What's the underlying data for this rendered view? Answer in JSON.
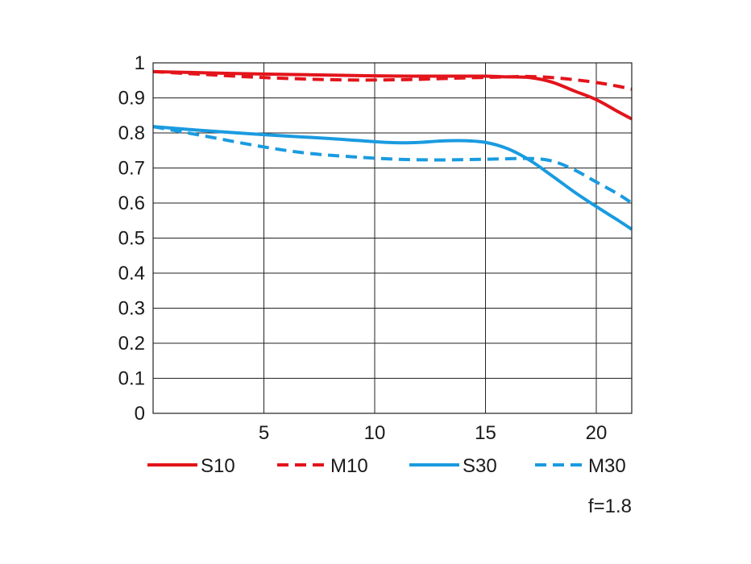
{
  "chart_data": {
    "type": "line",
    "title": "",
    "xlabel": "",
    "ylabel": "",
    "xlim": [
      0,
      21.6
    ],
    "ylim": [
      0,
      1
    ],
    "x_ticks": [
      5,
      10,
      15,
      20
    ],
    "y_ticks": [
      0,
      0.1,
      0.2,
      0.3,
      0.4,
      0.5,
      0.6,
      0.7,
      0.8,
      0.9,
      1
    ],
    "y_tick_labels": [
      "0",
      "0.1",
      "0.2",
      "0.3",
      "0.4",
      "0.5",
      "0.6",
      "0.7",
      "0.8",
      "0.9",
      "1"
    ],
    "grid": true,
    "legend_position": "bottom",
    "annotation": "f=1.8",
    "series": [
      {
        "name": "S10",
        "color": "#e3141b",
        "dash": "solid",
        "points": [
          [
            0,
            0.975
          ],
          [
            2,
            0.972
          ],
          [
            5,
            0.968
          ],
          [
            8,
            0.965
          ],
          [
            10,
            0.963
          ],
          [
            12,
            0.962
          ],
          [
            14,
            0.962
          ],
          [
            15,
            0.962
          ],
          [
            16,
            0.96
          ],
          [
            17,
            0.958
          ],
          [
            18,
            0.945
          ],
          [
            19,
            0.92
          ],
          [
            20,
            0.895
          ],
          [
            21,
            0.86
          ],
          [
            21.6,
            0.84
          ]
        ]
      },
      {
        "name": "M10",
        "color": "#e3141b",
        "dash": "dashed",
        "points": [
          [
            0,
            0.975
          ],
          [
            2,
            0.968
          ],
          [
            5,
            0.958
          ],
          [
            8,
            0.952
          ],
          [
            10,
            0.951
          ],
          [
            12,
            0.953
          ],
          [
            14,
            0.957
          ],
          [
            16,
            0.96
          ],
          [
            17,
            0.961
          ],
          [
            18,
            0.958
          ],
          [
            19,
            0.952
          ],
          [
            20,
            0.944
          ],
          [
            21,
            0.933
          ],
          [
            21.6,
            0.925
          ]
        ]
      },
      {
        "name": "S30",
        "color": "#1a9be0",
        "dash": "solid",
        "points": [
          [
            0,
            0.818
          ],
          [
            2,
            0.808
          ],
          [
            5,
            0.795
          ],
          [
            8,
            0.784
          ],
          [
            10,
            0.775
          ],
          [
            11,
            0.772
          ],
          [
            12,
            0.773
          ],
          [
            13,
            0.777
          ],
          [
            14,
            0.778
          ],
          [
            15,
            0.773
          ],
          [
            16,
            0.755
          ],
          [
            17,
            0.722
          ],
          [
            18,
            0.678
          ],
          [
            19,
            0.632
          ],
          [
            20,
            0.59
          ],
          [
            21,
            0.55
          ],
          [
            21.6,
            0.525
          ]
        ]
      },
      {
        "name": "M30",
        "color": "#1a9be0",
        "dash": "dashed",
        "points": [
          [
            0,
            0.818
          ],
          [
            2,
            0.795
          ],
          [
            5,
            0.76
          ],
          [
            7,
            0.742
          ],
          [
            9,
            0.732
          ],
          [
            11,
            0.725
          ],
          [
            13,
            0.723
          ],
          [
            15,
            0.725
          ],
          [
            17,
            0.727
          ],
          [
            18,
            0.72
          ],
          [
            19,
            0.695
          ],
          [
            20,
            0.66
          ],
          [
            21,
            0.625
          ],
          [
            21.6,
            0.6
          ]
        ]
      }
    ]
  }
}
